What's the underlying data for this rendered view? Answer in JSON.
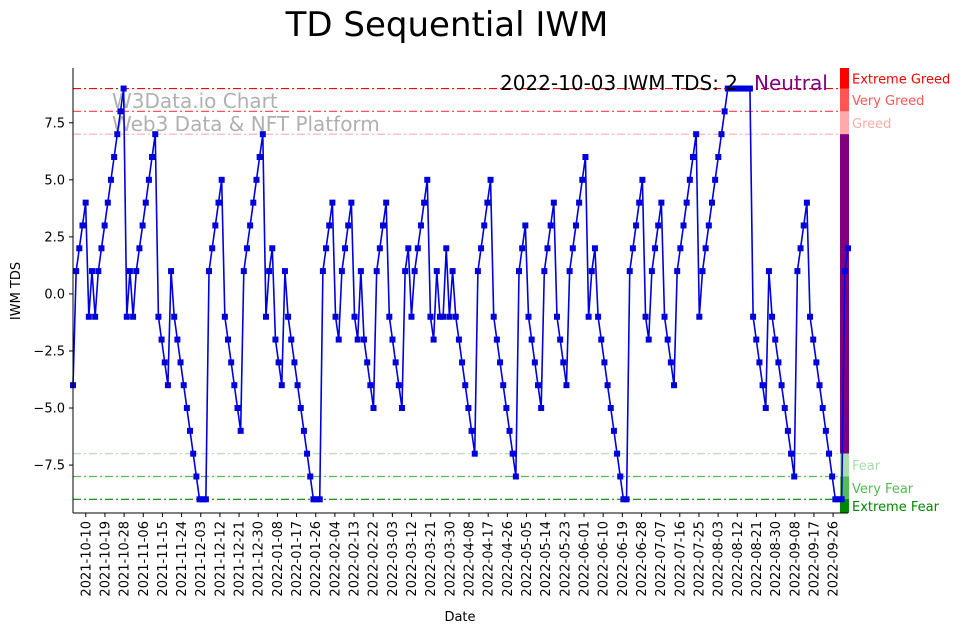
{
  "chart_data": {
    "type": "line",
    "title": "TD Sequential IWM",
    "xlabel": "Date",
    "ylabel": "IWM TDS",
    "ylim": [
      -9.6,
      9.9
    ],
    "yticks": [
      -7.5,
      -5.0,
      -2.5,
      0.0,
      2.5,
      5.0,
      7.5
    ],
    "ytick_labels": [
      "−7.5",
      "−5.0",
      "−2.5",
      "0.0",
      "2.5",
      "5.0",
      "7.5"
    ],
    "x_start": "2021-10-04",
    "x_end": "2022-10-03",
    "xticks": [
      "2021-10-10",
      "2021-10-19",
      "2021-10-28",
      "2021-11-06",
      "2021-11-15",
      "2021-11-24",
      "2021-12-03",
      "2021-12-12",
      "2021-12-21",
      "2021-12-30",
      "2022-01-08",
      "2022-01-17",
      "2022-01-26",
      "2022-02-04",
      "2022-02-13",
      "2022-02-22",
      "2022-03-03",
      "2022-03-12",
      "2022-03-21",
      "2022-03-30",
      "2022-04-08",
      "2022-04-17",
      "2022-04-26",
      "2022-05-05",
      "2022-05-14",
      "2022-05-23",
      "2022-06-01",
      "2022-06-10",
      "2022-06-19",
      "2022-06-28",
      "2022-07-07",
      "2022-07-16",
      "2022-07-25",
      "2022-08-03",
      "2022-08-12",
      "2022-08-21",
      "2022-08-30",
      "2022-09-08",
      "2022-09-17",
      "2022-09-26"
    ],
    "series": [
      {
        "color": "#0000dd",
        "marker": "square",
        "values": [
          -4,
          1,
          2,
          3,
          4,
          -1,
          1,
          -1,
          1,
          2,
          3,
          4,
          5,
          6,
          7,
          8,
          9,
          -1,
          1,
          -1,
          1,
          2,
          3,
          4,
          5,
          6,
          7,
          -1,
          -2,
          -3,
          -4,
          1,
          -1,
          -2,
          -3,
          -4,
          -5,
          -6,
          -7,
          -8,
          -9,
          -9,
          -9,
          1,
          2,
          3,
          4,
          5,
          -1,
          -2,
          -3,
          -4,
          -5,
          -6,
          1,
          2,
          3,
          4,
          5,
          6,
          7,
          -1,
          1,
          2,
          -2,
          -3,
          -4,
          1,
          -1,
          -2,
          -3,
          -4,
          -5,
          -6,
          -7,
          -8,
          -9,
          -9,
          -9,
          1,
          2,
          3,
          4,
          -1,
          -2,
          1,
          2,
          3,
          4,
          -1,
          -2,
          1,
          -2,
          -3,
          -4,
          -5,
          1,
          2,
          3,
          4,
          -1,
          -2,
          -3,
          -4,
          -5,
          1,
          2,
          -1,
          1,
          2,
          3,
          4,
          5,
          -1,
          -2,
          1,
          -1,
          -1,
          2,
          -1,
          1,
          -1,
          -2,
          -3,
          -4,
          -5,
          -6,
          -7,
          1,
          2,
          3,
          4,
          5,
          -1,
          -2,
          -3,
          -4,
          -5,
          -6,
          -7,
          -8,
          1,
          2,
          3,
          -1,
          -2,
          -3,
          -4,
          -5,
          1,
          2,
          3,
          4,
          -1,
          -2,
          -3,
          -4,
          1,
          2,
          3,
          4,
          5,
          6,
          -1,
          1,
          2,
          -1,
          -2,
          -3,
          -4,
          -5,
          -6,
          -7,
          -8,
          -9,
          -9,
          1,
          2,
          3,
          4,
          5,
          -1,
          -2,
          1,
          2,
          3,
          4,
          -1,
          -2,
          -3,
          -4,
          1,
          2,
          3,
          4,
          5,
          6,
          7,
          -1,
          1,
          2,
          3,
          4,
          5,
          6,
          7,
          8,
          9,
          9,
          9,
          9,
          9,
          9,
          9,
          9,
          -1,
          -2,
          -3,
          -4,
          -5,
          1,
          -1,
          -2,
          -3,
          -4,
          -5,
          -6,
          -7,
          -8,
          1,
          2,
          3,
          4,
          -1,
          -2,
          -3,
          -4,
          -5,
          -6,
          -7,
          -8,
          -9,
          -9,
          -9,
          1,
          2
        ]
      }
    ],
    "reference_lines": [
      {
        "y": 9,
        "color": "#ff0000"
      },
      {
        "y": 8,
        "color": "#ff5555"
      },
      {
        "y": 7,
        "color": "#ffaaaa"
      },
      {
        "y": -7,
        "color": "#aaddaa"
      },
      {
        "y": -8,
        "color": "#55bb55"
      },
      {
        "y": -9,
        "color": "#008800"
      }
    ],
    "sentiment_bar": [
      {
        "from": 9,
        "to": 9.9,
        "color": "#ff0000",
        "label": "Extreme Greed"
      },
      {
        "from": 8,
        "to": 9,
        "color": "#ff5555",
        "label": "Very Greed"
      },
      {
        "from": 7,
        "to": 8,
        "color": "#ffaaaa",
        "label": "Greed"
      },
      {
        "from": -7,
        "to": 7,
        "color": "#800080",
        "label": ""
      },
      {
        "from": -8,
        "to": -7,
        "color": "#aaddaa",
        "label": "Fear"
      },
      {
        "from": -9,
        "to": -8,
        "color": "#55bb55",
        "label": "Very Fear"
      },
      {
        "from": -9.6,
        "to": -9,
        "color": "#008800",
        "label": "Extreme Fear"
      }
    ],
    "annotation": {
      "text": "2022-10-03 IWM TDS: 2",
      "status": "Neutral",
      "status_color": "#800080"
    },
    "watermark": [
      "W3Data.io Chart",
      "Web3 Data & NFT Platform"
    ]
  }
}
